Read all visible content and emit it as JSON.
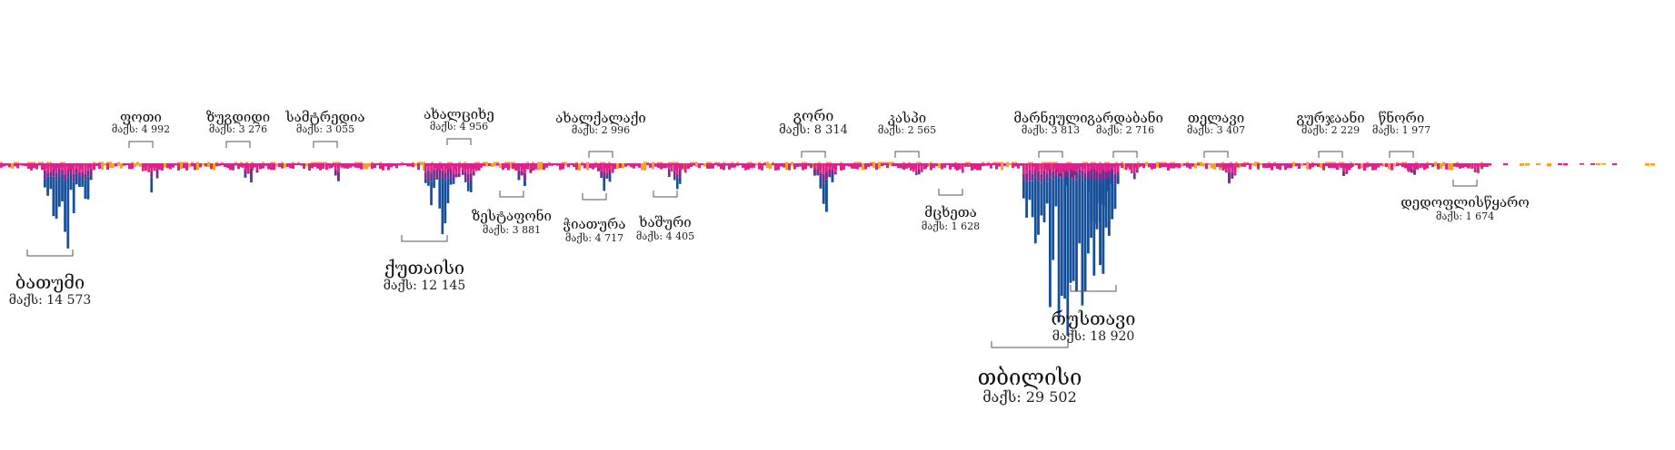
{
  "chart_data": {
    "type": "bar",
    "title": "",
    "xlabel": "",
    "ylabel": "",
    "max_label_prefix": "მაქს:",
    "colors": {
      "high": "#16509a",
      "mid": "#7b2a8c",
      "low": "#e0218a",
      "trace": "#f4a02a"
    },
    "ylim": [
      0,
      29502
    ],
    "cities": [
      {
        "name": "ბათუმი",
        "max": 14573,
        "max_label": "14 573",
        "side": "below",
        "size": "large"
      },
      {
        "name": "ფოთი",
        "max": 4992,
        "max_label": "4 992",
        "side": "above",
        "size": "small"
      },
      {
        "name": "ზუგდიდი",
        "max": 3276,
        "max_label": "3 276",
        "side": "above",
        "size": "small"
      },
      {
        "name": "სამტრედია",
        "max": 3055,
        "max_label": "3 055",
        "side": "above",
        "size": "small"
      },
      {
        "name": "ქუთაისი",
        "max": 12145,
        "max_label": "12 145",
        "side": "below",
        "size": "large"
      },
      {
        "name": "ახალციხე",
        "max": 4956,
        "max_label": "4 956",
        "side": "above",
        "size": "small"
      },
      {
        "name": "ზესტაფონი",
        "max": 3881,
        "max_label": "3 881",
        "side": "below",
        "size": "small"
      },
      {
        "name": "ახალქალაქი",
        "max": 2996,
        "max_label": "2 996",
        "side": "above",
        "size": "small"
      },
      {
        "name": "ჭიათურა",
        "max": 4717,
        "max_label": "4 717",
        "side": "below",
        "size": "small"
      },
      {
        "name": "ხაშური",
        "max": 4405,
        "max_label": "4 405",
        "side": "below",
        "size": "small"
      },
      {
        "name": "გორი",
        "max": 8314,
        "max_label": "8 314",
        "side": "above",
        "size": "medium"
      },
      {
        "name": "კასპი",
        "max": 2565,
        "max_label": "2 565",
        "side": "above",
        "size": "small"
      },
      {
        "name": "მცხეთა",
        "max": 1628,
        "max_label": "1 628",
        "side": "below",
        "size": "small"
      },
      {
        "name": "მარნეული",
        "max": 3813,
        "max_label": "3 813",
        "side": "above",
        "size": "small"
      },
      {
        "name": "თბილისი",
        "max": 29502,
        "max_label": "29 502",
        "side": "below",
        "size": "xlarge"
      },
      {
        "name": "რუსთავი",
        "max": 18920,
        "max_label": "18 920",
        "side": "below",
        "size": "large"
      },
      {
        "name": "გარდაბანი",
        "max": 2716,
        "max_label": "2 716",
        "side": "above",
        "size": "small"
      },
      {
        "name": "თელავი",
        "max": 3407,
        "max_label": "3 407",
        "side": "above",
        "size": "small"
      },
      {
        "name": "გურჯაანი",
        "max": 2229,
        "max_label": "2 229",
        "side": "above",
        "size": "small"
      },
      {
        "name": "წნორი",
        "max": 1977,
        "max_label": "1 977",
        "side": "above",
        "size": "small"
      },
      {
        "name": "დედოფლისწყარო",
        "max": 1674,
        "max_label": "1 674",
        "side": "below",
        "size": "small"
      }
    ]
  }
}
